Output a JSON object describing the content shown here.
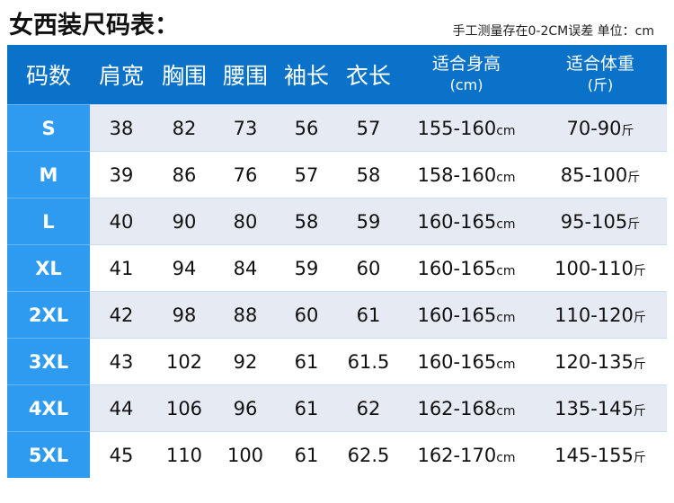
{
  "title": "女西装尺码表：",
  "note": "手工测量存在0-2CM误差  单位：cm",
  "headers": [
    {
      "label": "码数"
    },
    {
      "label": "肩宽"
    },
    {
      "label": "胸围"
    },
    {
      "label": "腰围"
    },
    {
      "label": "袖长"
    },
    {
      "label": "衣长"
    },
    {
      "label": "适合身高",
      "sub": "(cm)"
    },
    {
      "label": "适合体重",
      "sub": "(斤)"
    }
  ],
  "height_unit": "cm",
  "weight_unit": "斤",
  "rows": [
    {
      "size": "S",
      "shoulder": "38",
      "chest": "82",
      "waist": "73",
      "sleeve": "56",
      "length": "57",
      "height": "155-160",
      "weight": "70-90"
    },
    {
      "size": "M",
      "shoulder": "39",
      "chest": "86",
      "waist": "76",
      "sleeve": "57",
      "length": "58",
      "height": "158-160",
      "weight": "85-100"
    },
    {
      "size": "L",
      "shoulder": "40",
      "chest": "90",
      "waist": "80",
      "sleeve": "58",
      "length": "59",
      "height": "160-165",
      "weight": "95-105"
    },
    {
      "size": "XL",
      "shoulder": "41",
      "chest": "94",
      "waist": "84",
      "sleeve": "59",
      "length": "60",
      "height": "160-165",
      "weight": "100-110"
    },
    {
      "size": "2XL",
      "shoulder": "42",
      "chest": "98",
      "waist": "88",
      "sleeve": "60",
      "length": "61",
      "height": "160-165",
      "weight": "110-120"
    },
    {
      "size": "3XL",
      "shoulder": "43",
      "chest": "102",
      "waist": "92",
      "sleeve": "61",
      "length": "61.5",
      "height": "160-165",
      "weight": "120-135"
    },
    {
      "size": "4XL",
      "shoulder": "44",
      "chest": "106",
      "waist": "96",
      "sleeve": "61",
      "length": "62",
      "height": "162-168",
      "weight": "135-145"
    },
    {
      "size": "5XL",
      "shoulder": "45",
      "chest": "110",
      "waist": "100",
      "sleeve": "61",
      "length": "62.5",
      "height": "162-170",
      "weight": "145-155"
    }
  ],
  "colors": {
    "header": "#0a72c8",
    "size_column": "#2f9bf0",
    "alt_row": "#e6ebf3"
  }
}
